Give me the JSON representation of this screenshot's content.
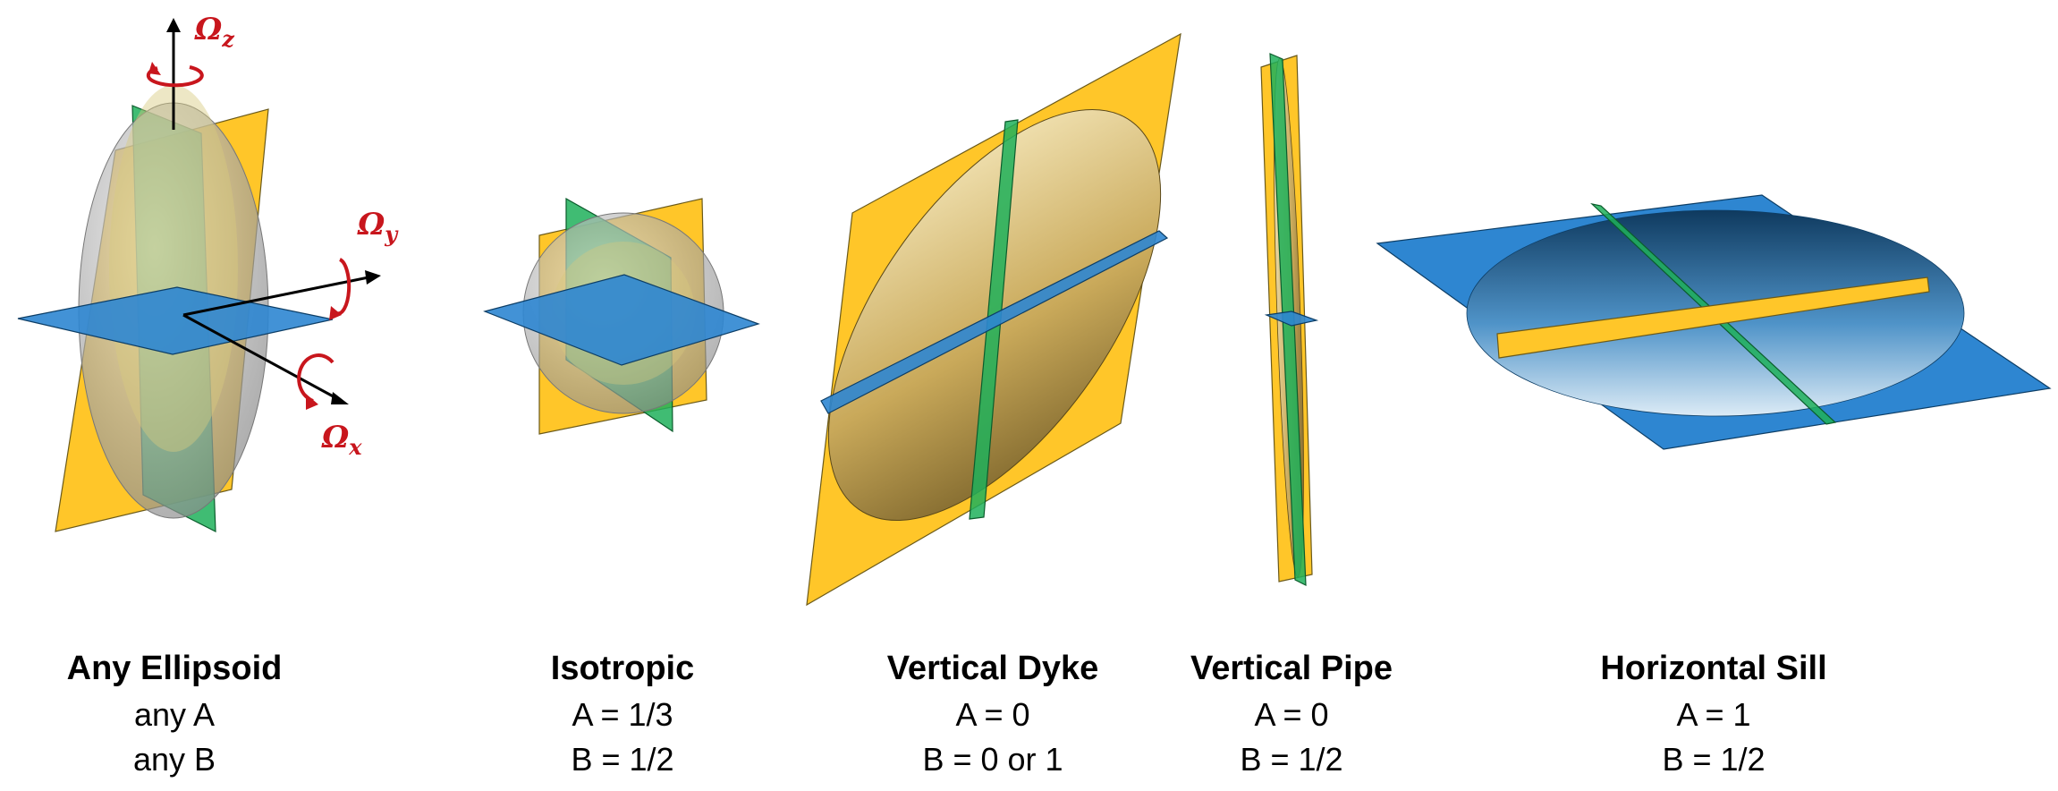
{
  "colors": {
    "yellow_plane": "#FFC629",
    "green_plane": "#1FB05A",
    "blue_plane": "#2E86D1",
    "ellipsoid_gray": "#9A9A9A",
    "ellipsoid_gold": "#B8963E",
    "axis": "#000000",
    "rotation": "#C8161D"
  },
  "axes": {
    "z_label": "Ω",
    "z_sub": "z",
    "y_label": "Ω",
    "y_sub": "y",
    "x_label": "Ω",
    "x_sub": "x"
  },
  "panels": [
    {
      "title": "Any Ellipsoid",
      "line1": "any A",
      "line2": "any B"
    },
    {
      "title": "Isotropic",
      "line1": "A = 1/3",
      "line2": "B = 1/2"
    },
    {
      "title": "Vertical Dyke",
      "line1": "A = 0",
      "line2": "B = 0 or 1"
    },
    {
      "title": "Vertical Pipe",
      "line1": "A = 0",
      "line2": "B = 1/2"
    },
    {
      "title": "Horizontal Sill",
      "line1": "A = 1",
      "line2": "B = 1/2"
    }
  ]
}
